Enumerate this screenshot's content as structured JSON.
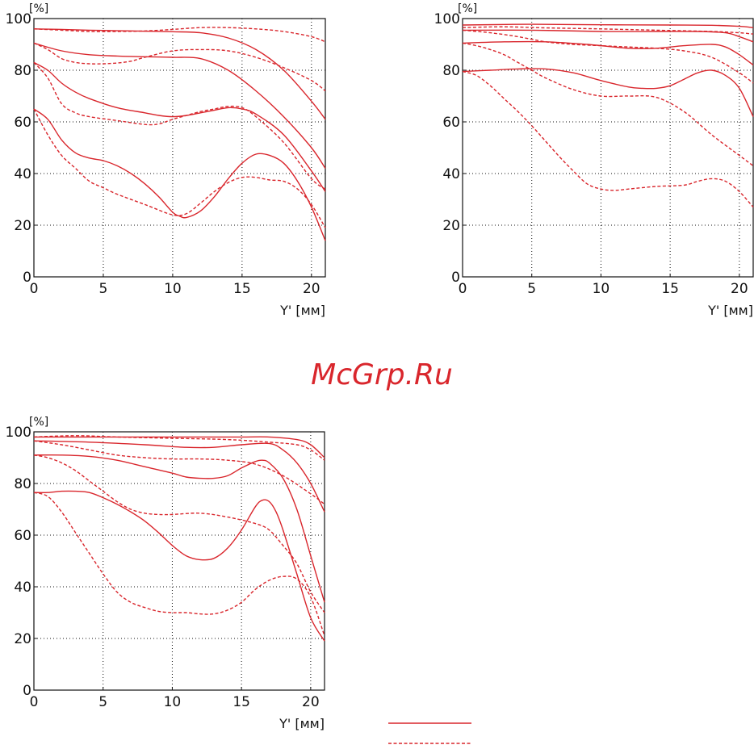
{
  "watermark": "McGrp.Ru",
  "colors": {
    "curve": "#d9262c",
    "axis": "#111111",
    "grid": "#111111"
  },
  "chart_data": [
    {
      "type": "line",
      "title": "",
      "xlabel": "Y' [мм]",
      "ylabel": "[%]",
      "xlim": [
        0,
        21
      ],
      "ylim": [
        0,
        100
      ],
      "xticks": [
        "0",
        "5",
        "10",
        "15",
        "20"
      ],
      "yticks": [
        "0",
        "20",
        "40",
        "60",
        "80",
        "100"
      ],
      "grid": true,
      "series": [
        {
          "style": "solid",
          "x": [
            0,
            2,
            4,
            6,
            8,
            10,
            12,
            14,
            16,
            18,
            20,
            21
          ],
          "y": [
            96,
            95.8,
            95.5,
            95.3,
            95.1,
            94.9,
            94.5,
            92.5,
            88,
            80,
            68,
            61
          ]
        },
        {
          "style": "dashed",
          "x": [
            0,
            2,
            4,
            6,
            8,
            10,
            12,
            14,
            16,
            18,
            20,
            21
          ],
          "y": [
            96,
            95.5,
            95,
            95,
            95.2,
            95.8,
            96.5,
            96.5,
            96,
            95,
            93,
            91
          ]
        },
        {
          "style": "solid",
          "x": [
            0,
            2,
            4,
            6,
            8,
            10,
            12,
            14,
            16,
            18,
            20,
            21
          ],
          "y": [
            90.5,
            87.5,
            86,
            85.5,
            85.2,
            85,
            84.5,
            80,
            72,
            62,
            50,
            42
          ]
        },
        {
          "style": "dashed",
          "x": [
            0,
            1,
            2,
            3,
            4,
            5,
            6,
            7,
            8,
            10,
            12,
            14,
            16,
            18,
            20,
            21
          ],
          "y": [
            90.5,
            88,
            84.5,
            83,
            82.5,
            82.5,
            82.8,
            83.5,
            85,
            87.5,
            88,
            87.5,
            85,
            81,
            76,
            72
          ]
        },
        {
          "style": "solid",
          "x": [
            0,
            1,
            2,
            3,
            4,
            6,
            8,
            9,
            10,
            11,
            12,
            13,
            14,
            15,
            16,
            18,
            20,
            21
          ],
          "y": [
            83,
            80,
            75,
            71.5,
            69,
            65.5,
            63.5,
            62.5,
            62,
            62.5,
            63.5,
            64.5,
            65.5,
            65,
            63,
            55,
            41,
            33
          ]
        },
        {
          "style": "dashed",
          "x": [
            0,
            1,
            2,
            3,
            4,
            6,
            8,
            9,
            10,
            11,
            12,
            13,
            14,
            15,
            16,
            18,
            20,
            21
          ],
          "y": [
            83,
            77,
            67,
            63.5,
            62,
            60.5,
            59,
            59.2,
            61,
            62.5,
            64,
            65,
            66,
            65.5,
            62,
            52,
            38,
            34
          ]
        },
        {
          "style": "solid",
          "x": [
            0,
            1,
            2,
            3,
            4,
            5,
            6,
            7,
            8,
            9,
            10,
            10.5,
            11,
            12,
            13,
            14,
            15,
            16,
            17,
            18,
            19,
            20,
            21
          ],
          "y": [
            65,
            61,
            53,
            48,
            46,
            45,
            43,
            40,
            36,
            31,
            25,
            23.5,
            23,
            25.5,
            31,
            38,
            44,
            47.5,
            47,
            44,
            37,
            27,
            14
          ]
        },
        {
          "style": "dashed",
          "x": [
            0,
            1,
            2,
            3,
            4,
            5,
            6,
            8,
            10,
            11,
            12,
            13,
            14,
            15,
            16,
            17,
            18,
            19,
            20,
            21
          ],
          "y": [
            65,
            55,
            47,
            42,
            37,
            34.5,
            32,
            28,
            24,
            24.5,
            28.5,
            33,
            36.5,
            38.5,
            38.5,
            37.5,
            37,
            34,
            28,
            19
          ]
        }
      ]
    },
    {
      "type": "line",
      "title": "",
      "xlabel": "Y' [мм]",
      "ylabel": "[%]",
      "xlim": [
        0,
        21
      ],
      "ylim": [
        0,
        100
      ],
      "xticks": [
        "0",
        "5",
        "10",
        "15",
        "20"
      ],
      "yticks": [
        "0",
        "20",
        "40",
        "60",
        "80",
        "100"
      ],
      "grid": true,
      "series": [
        {
          "style": "solid",
          "x": [
            0,
            5,
            10,
            15,
            18,
            20,
            21
          ],
          "y": [
            97.5,
            97.8,
            97.6,
            97.5,
            97.4,
            97,
            96.5
          ]
        },
        {
          "style": "dashed",
          "x": [
            0,
            3,
            6,
            10,
            14,
            18,
            20,
            21
          ],
          "y": [
            96.5,
            96.8,
            96.4,
            96,
            95.5,
            95,
            94.5,
            94
          ]
        },
        {
          "style": "solid",
          "x": [
            0,
            5,
            10,
            14,
            17,
            19,
            20,
            21
          ],
          "y": [
            95.5,
            95.5,
            95,
            95,
            95,
            94.5,
            93,
            91
          ]
        },
        {
          "style": "dashed",
          "x": [
            0,
            2,
            4,
            6,
            8,
            10,
            12,
            14,
            16,
            18,
            20,
            21
          ],
          "y": [
            95.5,
            94.5,
            93,
            91,
            90,
            89.5,
            89,
            88.5,
            87.5,
            85,
            79,
            75
          ]
        },
        {
          "style": "solid",
          "x": [
            0,
            3,
            6,
            9,
            12,
            14,
            16,
            18,
            19,
            20,
            21
          ],
          "y": [
            90.5,
            91,
            91,
            90,
            88.5,
            88.5,
            89.5,
            90,
            89,
            86,
            82
          ]
        },
        {
          "style": "dashed",
          "x": [
            0,
            1,
            2,
            3,
            4,
            5,
            6,
            8,
            10,
            12,
            14,
            16,
            18,
            20,
            21
          ],
          "y": [
            90.5,
            89.5,
            88,
            86,
            83,
            80,
            77,
            72.5,
            70,
            70,
            69.5,
            64,
            55,
            47,
            43
          ]
        },
        {
          "style": "solid",
          "x": [
            0,
            2,
            4,
            6,
            8,
            10,
            12,
            13,
            14,
            15,
            16,
            17,
            18,
            19,
            20,
            21
          ],
          "y": [
            79.5,
            80,
            80.5,
            80.5,
            79,
            76,
            73.5,
            73,
            73,
            74,
            76.5,
            79,
            80,
            78,
            73,
            62
          ]
        },
        {
          "style": "dashed",
          "x": [
            0,
            1,
            2,
            3,
            4,
            5,
            6,
            7,
            8,
            9,
            10,
            11,
            12,
            14,
            16,
            17,
            18,
            19,
            20,
            21
          ],
          "y": [
            79.5,
            78,
            74,
            69,
            64,
            58.5,
            52.5,
            46.5,
            41,
            36,
            34,
            33.5,
            34,
            35,
            35.5,
            37,
            38,
            37,
            33,
            27
          ]
        }
      ]
    },
    {
      "type": "line",
      "title": "",
      "xlabel": "Y' [мм]",
      "ylabel": "[%]",
      "xlim": [
        0,
        21
      ],
      "ylim": [
        0,
        100
      ],
      "xticks": [
        "0",
        "5",
        "10",
        "15",
        "20"
      ],
      "yticks": [
        "0",
        "20",
        "40",
        "60",
        "80",
        "100"
      ],
      "grid": true,
      "series": [
        {
          "style": "solid",
          "x": [
            0,
            4,
            8,
            12,
            15,
            17,
            19,
            20,
            21
          ],
          "y": [
            98,
            98,
            98,
            98,
            98,
            98,
            97,
            95,
            90
          ]
        },
        {
          "style": "dashed",
          "x": [
            0,
            3,
            6,
            10,
            14,
            17,
            19,
            20,
            21
          ],
          "y": [
            98,
            98.5,
            98,
            97.5,
            97,
            96,
            95,
            93,
            89
          ]
        },
        {
          "style": "solid",
          "x": [
            0,
            4,
            8,
            11,
            13,
            15,
            17,
            18,
            19,
            20,
            21
          ],
          "y": [
            96.5,
            96,
            95,
            94,
            94,
            95,
            95.5,
            93,
            88,
            80,
            69
          ]
        },
        {
          "style": "dashed",
          "x": [
            0,
            2,
            4,
            6,
            8,
            10,
            12,
            14,
            16,
            18,
            20,
            21
          ],
          "y": [
            96.5,
            95,
            93,
            91,
            90,
            89.5,
            89.5,
            89,
            87.5,
            83,
            76,
            72
          ]
        },
        {
          "style": "solid",
          "x": [
            0,
            2,
            4,
            6,
            8,
            10,
            11,
            12,
            13,
            14,
            15,
            16,
            16.5,
            17,
            18,
            19,
            20,
            21
          ],
          "y": [
            91,
            91,
            90.5,
            89,
            86.5,
            84,
            82.5,
            82,
            82,
            83,
            86,
            88.5,
            89,
            88,
            82,
            70,
            52,
            34
          ]
        },
        {
          "style": "dashed",
          "x": [
            0,
            1,
            2,
            3,
            4,
            5,
            6,
            7,
            8,
            9,
            10,
            12,
            14,
            16,
            17,
            18,
            19,
            20,
            21
          ],
          "y": [
            91,
            90,
            88,
            85,
            81,
            77,
            73,
            70,
            68.5,
            68,
            68,
            68.5,
            67,
            64.5,
            62,
            56,
            49,
            38,
            30
          ]
        },
        {
          "style": "solid",
          "x": [
            0,
            1,
            2,
            3,
            4,
            5,
            6,
            7,
            8,
            9,
            10,
            11,
            12,
            13,
            14,
            15,
            16,
            16.5,
            17,
            17.5,
            18,
            19,
            20,
            21
          ],
          "y": [
            76.5,
            76.5,
            77,
            77,
            76.5,
            74.5,
            72,
            69,
            65.5,
            61,
            56,
            52,
            50.5,
            51,
            55,
            62,
            71,
            73.5,
            73,
            69,
            62,
            45,
            28,
            19
          ]
        },
        {
          "style": "dashed",
          "x": [
            0,
            1,
            2,
            3,
            4,
            5,
            6,
            7,
            8,
            9,
            10,
            11,
            12,
            13,
            14,
            15,
            16,
            17,
            18,
            19,
            20,
            21
          ],
          "y": [
            76.5,
            75,
            69,
            61,
            53,
            45,
            38,
            34,
            32,
            30.5,
            30,
            30,
            29.5,
            29.5,
            31,
            34,
            39,
            42.5,
            44,
            43,
            36,
            21
          ]
        }
      ]
    }
  ],
  "legend": [
    {
      "style": "solid",
      "label": ""
    },
    {
      "style": "dashed",
      "label": ""
    }
  ]
}
